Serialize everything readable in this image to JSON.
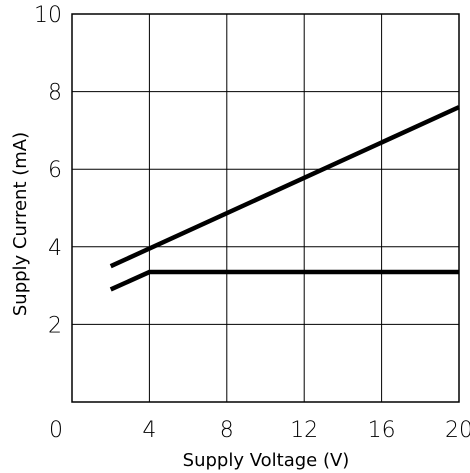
{
  "chart_data": {
    "type": "line",
    "title": "",
    "xlabel": "Supply Voltage (V)",
    "ylabel": "Supply Current (mA)",
    "xlim": [
      0,
      20
    ],
    "ylim": [
      0,
      10
    ],
    "x_ticks": [
      0,
      4,
      8,
      12,
      16,
      20
    ],
    "y_ticks": [
      0,
      2,
      4,
      6,
      8,
      10
    ],
    "x_tick_labels": [
      "0",
      "4",
      "8",
      "12",
      "16",
      "20"
    ],
    "y_tick_labels": [
      "",
      "2",
      "4",
      "6",
      "8",
      "10"
    ],
    "grid": true,
    "legend": "none",
    "line_color": "#000000",
    "series": [
      {
        "x": [
          2,
          20
        ],
        "y": [
          3.5,
          7.6
        ]
      },
      {
        "x": [
          2,
          4,
          20
        ],
        "y": [
          2.9,
          3.35,
          3.35
        ]
      }
    ]
  }
}
